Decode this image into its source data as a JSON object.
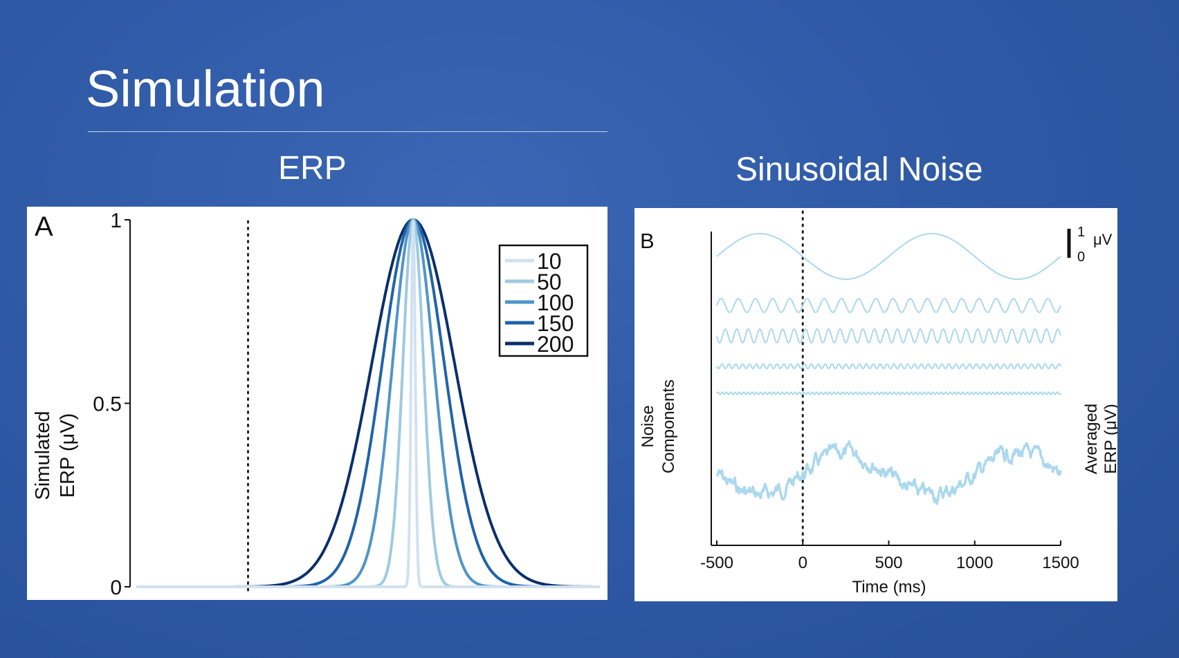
{
  "slide": {
    "title": "Simulation"
  },
  "panels": {
    "erp_heading": "ERP",
    "noise_heading": "Sinusoidal Noise"
  },
  "chart_data": [
    {
      "panel_label": "A",
      "type": "line",
      "ylabel_line1": "Simulated",
      "ylabel_line2": "ERP (μV)",
      "xlabel": "",
      "yticks": [
        {
          "value": 0,
          "label": "0"
        },
        {
          "value": 0.5,
          "label": "0.5"
        },
        {
          "value": 1,
          "label": "1"
        }
      ],
      "ylim": [
        0,
        1
      ],
      "xlim": [
        -500,
        1500
      ],
      "stimulus_onset": 0,
      "peak_at": 700,
      "legend_position": "top-right",
      "series": [
        {
          "name": "10",
          "width": 10,
          "color": "#d2e1f1"
        },
        {
          "name": "50",
          "width": 50,
          "color": "#9ecae1"
        },
        {
          "name": "100",
          "width": 100,
          "color": "#4f95c9"
        },
        {
          "name": "150",
          "width": 150,
          "color": "#1f63a8"
        },
        {
          "name": "200",
          "width": 200,
          "color": "#0a2f6c"
        }
      ]
    },
    {
      "panel_label": "B",
      "type": "line",
      "ylabel_line1": "Noise",
      "ylabel_line2": "Components",
      "right_label_line1": "Averaged",
      "right_label_line2": "ERP (μV)",
      "xlabel": "Time (ms)",
      "xlim": [
        -500,
        1500
      ],
      "xticks": [
        -500,
        0,
        500,
        1000,
        1500
      ],
      "stimulus_onset": 0,
      "scale_bar": {
        "top_label": "1",
        "bottom_label": "0",
        "unit": "μV"
      },
      "line_color": "#aad8ef",
      "components": [
        {
          "period_ms": 1000,
          "amplitude_uv": 1.0
        },
        {
          "period_ms": 100,
          "amplitude_uv": 0.3
        },
        {
          "period_ms": 66.7,
          "amplitude_uv": 0.3
        },
        {
          "period_ms": 40,
          "amplitude_uv": 0.1
        },
        {
          "period_ms": 25,
          "amplitude_uv": 0.05
        }
      ],
      "averaged_series": {
        "name": "Averaged ERP"
      }
    }
  ]
}
